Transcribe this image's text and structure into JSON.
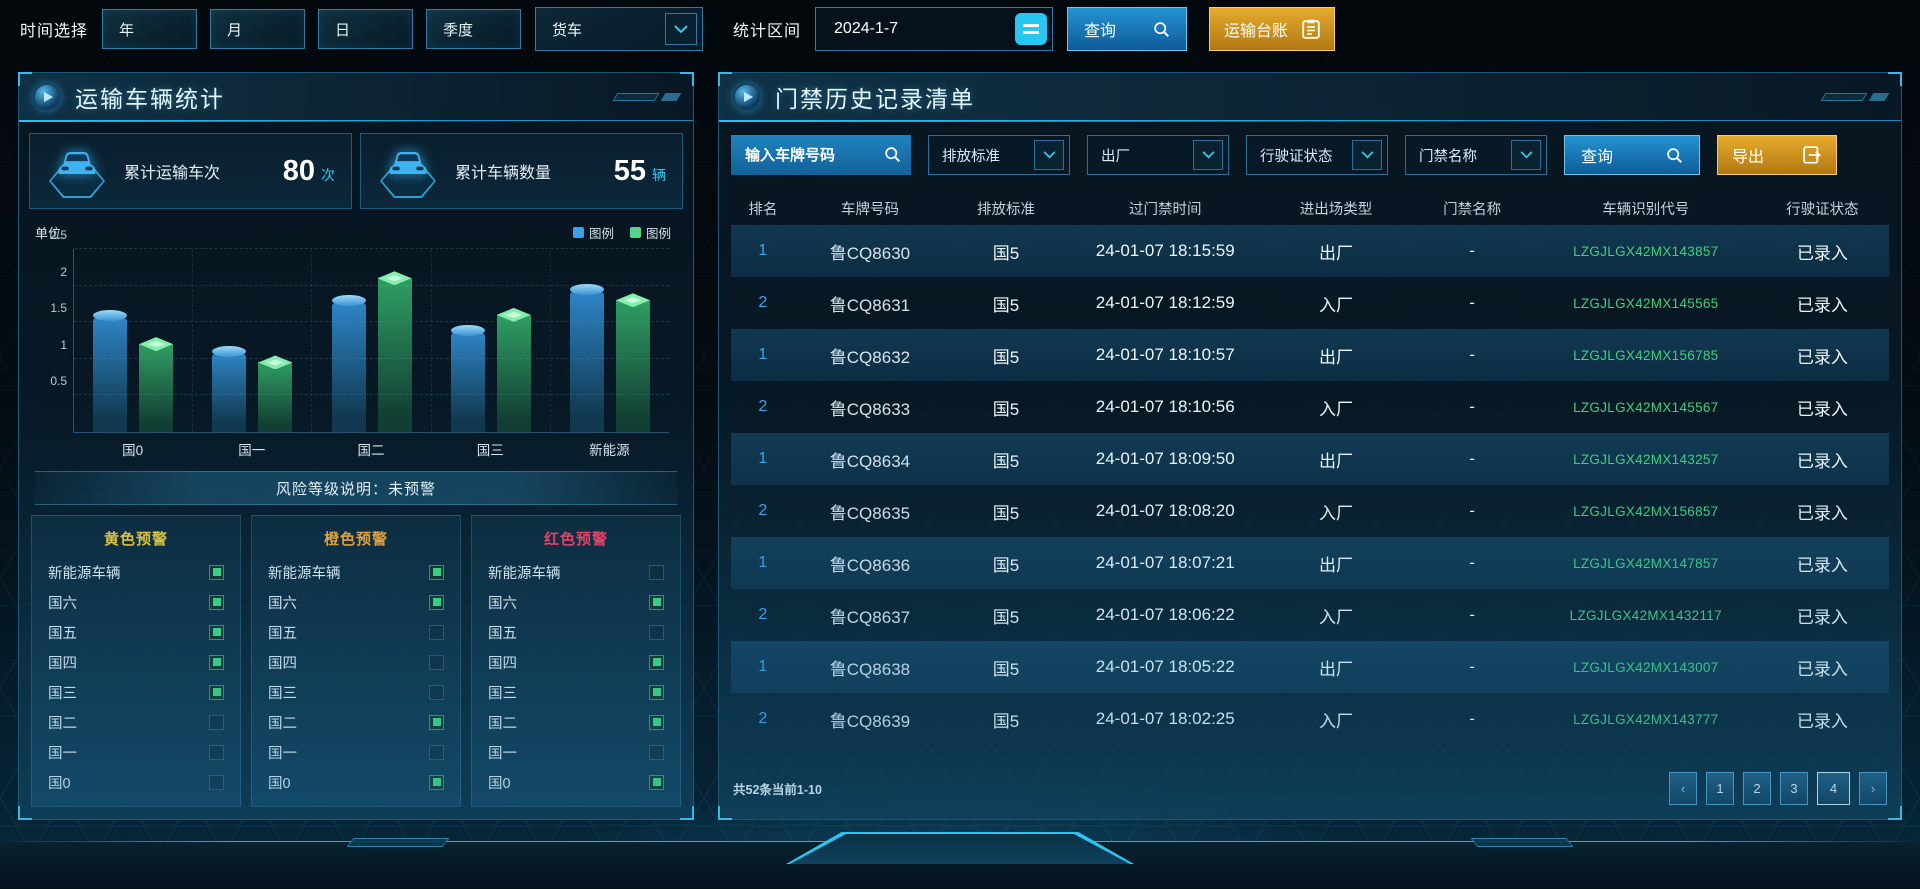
{
  "top_bar": {
    "time_label": "时间选择",
    "time_buttons": [
      "年",
      "月",
      "日",
      "季度"
    ],
    "vehicle_select_value": "货车",
    "range_label": "统计区间",
    "date_value": "2024-1-7",
    "query_label": "查询",
    "ledger_label": "运输台账"
  },
  "left_panel": {
    "title": "运输车辆统计",
    "stats": [
      {
        "label": "累计运输车次",
        "value": "80",
        "unit": "次"
      },
      {
        "label": "累计车辆数量",
        "value": "55",
        "unit": "辆"
      }
    ],
    "chart_data": {
      "type": "bar",
      "unit_label": "单位",
      "categories": [
        "国0",
        "国一",
        "国二",
        "国三",
        "新能源"
      ],
      "series": [
        {
          "name": "图例",
          "color": "#3b9ff0",
          "values": [
            1.6,
            1.1,
            1.8,
            1.4,
            1.95
          ]
        },
        {
          "name": "图例",
          "color": "#52d689",
          "values": [
            1.2,
            0.95,
            2.1,
            1.6,
            1.8
          ]
        }
      ],
      "ylim": [
        0,
        2.5
      ],
      "yticks": [
        0.5,
        1,
        1.5,
        2,
        2.5
      ],
      "legend_position": "top-right",
      "grid": "dashed"
    },
    "risk_note": "风险等级说明：未预警",
    "warning_groups": [
      {
        "title": "黄色预警",
        "color": "#e8c73a",
        "items": [
          {
            "label": "新能源车辆",
            "checked": true
          },
          {
            "label": "国六",
            "checked": true
          },
          {
            "label": "国五",
            "checked": true
          },
          {
            "label": "国四",
            "checked": true
          },
          {
            "label": "国三",
            "checked": true
          },
          {
            "label": "国二",
            "checked": false
          },
          {
            "label": "国一",
            "checked": false
          },
          {
            "label": "国0",
            "checked": false
          }
        ]
      },
      {
        "title": "橙色预警",
        "color": "#eda437",
        "items": [
          {
            "label": "新能源车辆",
            "checked": true
          },
          {
            "label": "国六",
            "checked": true
          },
          {
            "label": "国五",
            "checked": false
          },
          {
            "label": "国四",
            "checked": false
          },
          {
            "label": "国三",
            "checked": false
          },
          {
            "label": "国二",
            "checked": true
          },
          {
            "label": "国一",
            "checked": false
          },
          {
            "label": "国0",
            "checked": true
          }
        ]
      },
      {
        "title": "红色预警",
        "color": "#f23e63",
        "items": [
          {
            "label": "新能源车辆",
            "checked": false
          },
          {
            "label": "国六",
            "checked": true
          },
          {
            "label": "国五",
            "checked": false
          },
          {
            "label": "国四",
            "checked": true
          },
          {
            "label": "国三",
            "checked": true
          },
          {
            "label": "国二",
            "checked": true
          },
          {
            "label": "国一",
            "checked": false
          },
          {
            "label": "国0",
            "checked": true
          }
        ]
      }
    ]
  },
  "right_panel": {
    "title": "门禁历史记录清单",
    "filters": {
      "plate_placeholder": "输入车牌号码",
      "dropdowns": [
        "排放标准",
        "出厂",
        "行驶证状态",
        "门禁名称"
      ],
      "query_label": "查询",
      "export_label": "导出"
    },
    "table": {
      "columns": [
        "排名",
        "车牌号码",
        "排放标准",
        "过门禁时间",
        "进出场类型",
        "门禁名称",
        "车辆识别代号",
        "行驶证状态"
      ],
      "rows": [
        {
          "rank": "1",
          "plate": "鲁CQ8630",
          "standard": "国5",
          "time": "24-01-07 18:15:59",
          "gate_type": "出厂",
          "gate_name": "-",
          "vin": "LZGJLGX42MX143857",
          "license": "已录入"
        },
        {
          "rank": "2",
          "plate": "鲁CQ8631",
          "standard": "国5",
          "time": "24-01-07 18:12:59",
          "gate_type": "入厂",
          "gate_name": "-",
          "vin": "LZGJLGX42MX145565",
          "license": "已录入"
        },
        {
          "rank": "1",
          "plate": "鲁CQ8632",
          "standard": "国5",
          "time": "24-01-07 18:10:57",
          "gate_type": "出厂",
          "gate_name": "-",
          "vin": "LZGJLGX42MX156785",
          "license": "已录入"
        },
        {
          "rank": "2",
          "plate": "鲁CQ8633",
          "standard": "国5",
          "time": "24-01-07 18:10:56",
          "gate_type": "入厂",
          "gate_name": "-",
          "vin": "LZGJLGX42MX145567",
          "license": "已录入"
        },
        {
          "rank": "1",
          "plate": "鲁CQ8634",
          "standard": "国5",
          "time": "24-01-07 18:09:50",
          "gate_type": "出厂",
          "gate_name": "-",
          "vin": "LZGJLGX42MX143257",
          "license": "已录入"
        },
        {
          "rank": "2",
          "plate": "鲁CQ8635",
          "standard": "国5",
          "time": "24-01-07 18:08:20",
          "gate_type": "入厂",
          "gate_name": "-",
          "vin": "LZGJLGX42MX156857",
          "license": "已录入"
        },
        {
          "rank": "1",
          "plate": "鲁CQ8636",
          "standard": "国5",
          "time": "24-01-07 18:07:21",
          "gate_type": "出厂",
          "gate_name": "-",
          "vin": "LZGJLGX42MX147857",
          "license": "已录入"
        },
        {
          "rank": "2",
          "plate": "鲁CQ8637",
          "standard": "国5",
          "time": "24-01-07 18:06:22",
          "gate_type": "入厂",
          "gate_name": "-",
          "vin": "LZGJLGX42MX1432117",
          "license": "已录入"
        },
        {
          "rank": "1",
          "plate": "鲁CQ8638",
          "standard": "国5",
          "time": "24-01-07 18:05:22",
          "gate_type": "出厂",
          "gate_name": "-",
          "vin": "LZGJLGX42MX143007",
          "license": "已录入"
        },
        {
          "rank": "2",
          "plate": "鲁CQ8639",
          "standard": "国5",
          "time": "24-01-07 18:02:25",
          "gate_type": "入厂",
          "gate_name": "-",
          "vin": "LZGJLGX42MX143777",
          "license": "已录入"
        }
      ]
    },
    "pagination": {
      "summary": "共52条当前1-10",
      "prev": "‹",
      "next": "›",
      "pages": [
        "1",
        "2",
        "3",
        "4"
      ],
      "emphasized_page": "4"
    }
  },
  "colors": {
    "accent_cyan": "#35c8e8",
    "accent_orange": "#e7ab2e",
    "rank_blue": "#37a5f0",
    "vin_green": "#3ed07c",
    "bar_blue": "#3b9ff0",
    "bar_green": "#52d689"
  }
}
